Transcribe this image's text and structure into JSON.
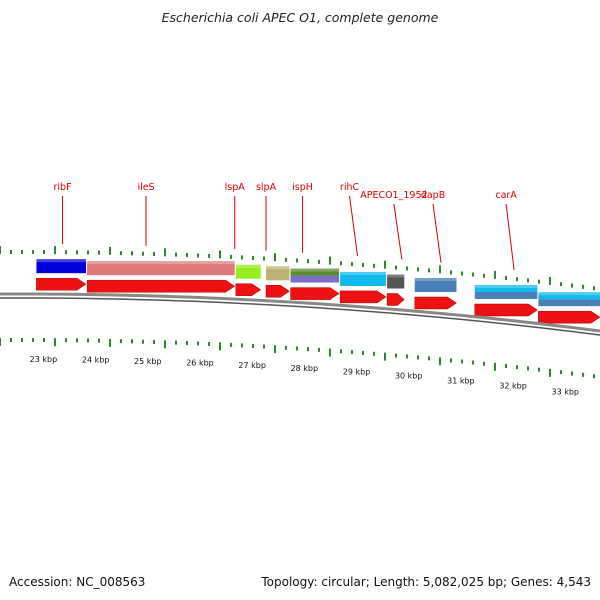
{
  "title": "Escherichia coli APEC O1, complete genome",
  "footer": {
    "accession_label": "Accession: NC_008563",
    "summary": "Topology: circular; Length: 5,082,025 bp; Genes: 4,543"
  },
  "colors": {
    "cds": "#ee1111",
    "tick": "#2a8a2a",
    "gene_label": "#e00000",
    "backbone": "#888888"
  },
  "axis": {
    "start_kbp": 22.8,
    "end_kbp": 33.8
  },
  "kbp_labels": [
    "23 kbp",
    "24 kbp",
    "25 kbp",
    "26 kbp",
    "27 kbp",
    "28 kbp",
    "29 kbp",
    "30 kbp",
    "31 kbp",
    "32 kbp",
    "33 kbp"
  ],
  "gene_labels": [
    {
      "name": "ribF",
      "pos_kbp": 23.5
    },
    {
      "name": "ileS",
      "pos_kbp": 25.1
    },
    {
      "name": "lspA",
      "pos_kbp": 26.8
    },
    {
      "name": "slpA",
      "pos_kbp": 27.4
    },
    {
      "name": "ispH",
      "pos_kbp": 28.1
    },
    {
      "name": "rihC",
      "pos_kbp": 29.0
    },
    {
      "name": "APECO1_1952",
      "pos_kbp": 29.85
    },
    {
      "name": "dapB",
      "pos_kbp": 30.6
    },
    {
      "name": "carA",
      "pos_kbp": 32.0
    }
  ],
  "feature_blocks": [
    {
      "start": 23.0,
      "end": 23.95,
      "color": "#0000dd"
    },
    {
      "start": 23.97,
      "end": 26.8,
      "color": "#e07a7a"
    },
    {
      "start": 26.82,
      "end": 27.3,
      "color": "#99ee22"
    },
    {
      "start": 27.4,
      "end": 27.85,
      "color": "#bcb074"
    },
    {
      "start": 27.87,
      "end": 28.8,
      "color": "#5a8a2a",
      "split": "#7a6ec8"
    },
    {
      "start": 28.82,
      "end": 29.7,
      "color": "#11bbee"
    },
    {
      "start": 29.72,
      "end": 30.05,
      "color": "#555555"
    },
    {
      "start": 30.25,
      "end": 31.05,
      "color": "#4a80b8"
    },
    {
      "start": 31.4,
      "end": 32.6,
      "color": "#11bbee",
      "split": "#4a80b8"
    },
    {
      "start": 32.62,
      "end": 33.8,
      "color": "#11bbee",
      "split": "#4a80b8"
    }
  ],
  "cds_arrows": [
    {
      "start": 23.0,
      "end": 23.95
    },
    {
      "start": 23.97,
      "end": 26.8
    },
    {
      "start": 26.82,
      "end": 27.3
    },
    {
      "start": 27.4,
      "end": 27.85
    },
    {
      "start": 27.87,
      "end": 28.8
    },
    {
      "start": 28.82,
      "end": 29.7
    },
    {
      "start": 29.72,
      "end": 30.05
    },
    {
      "start": 30.25,
      "end": 31.05
    },
    {
      "start": 31.4,
      "end": 32.6
    },
    {
      "start": 32.62,
      "end": 33.8
    }
  ]
}
